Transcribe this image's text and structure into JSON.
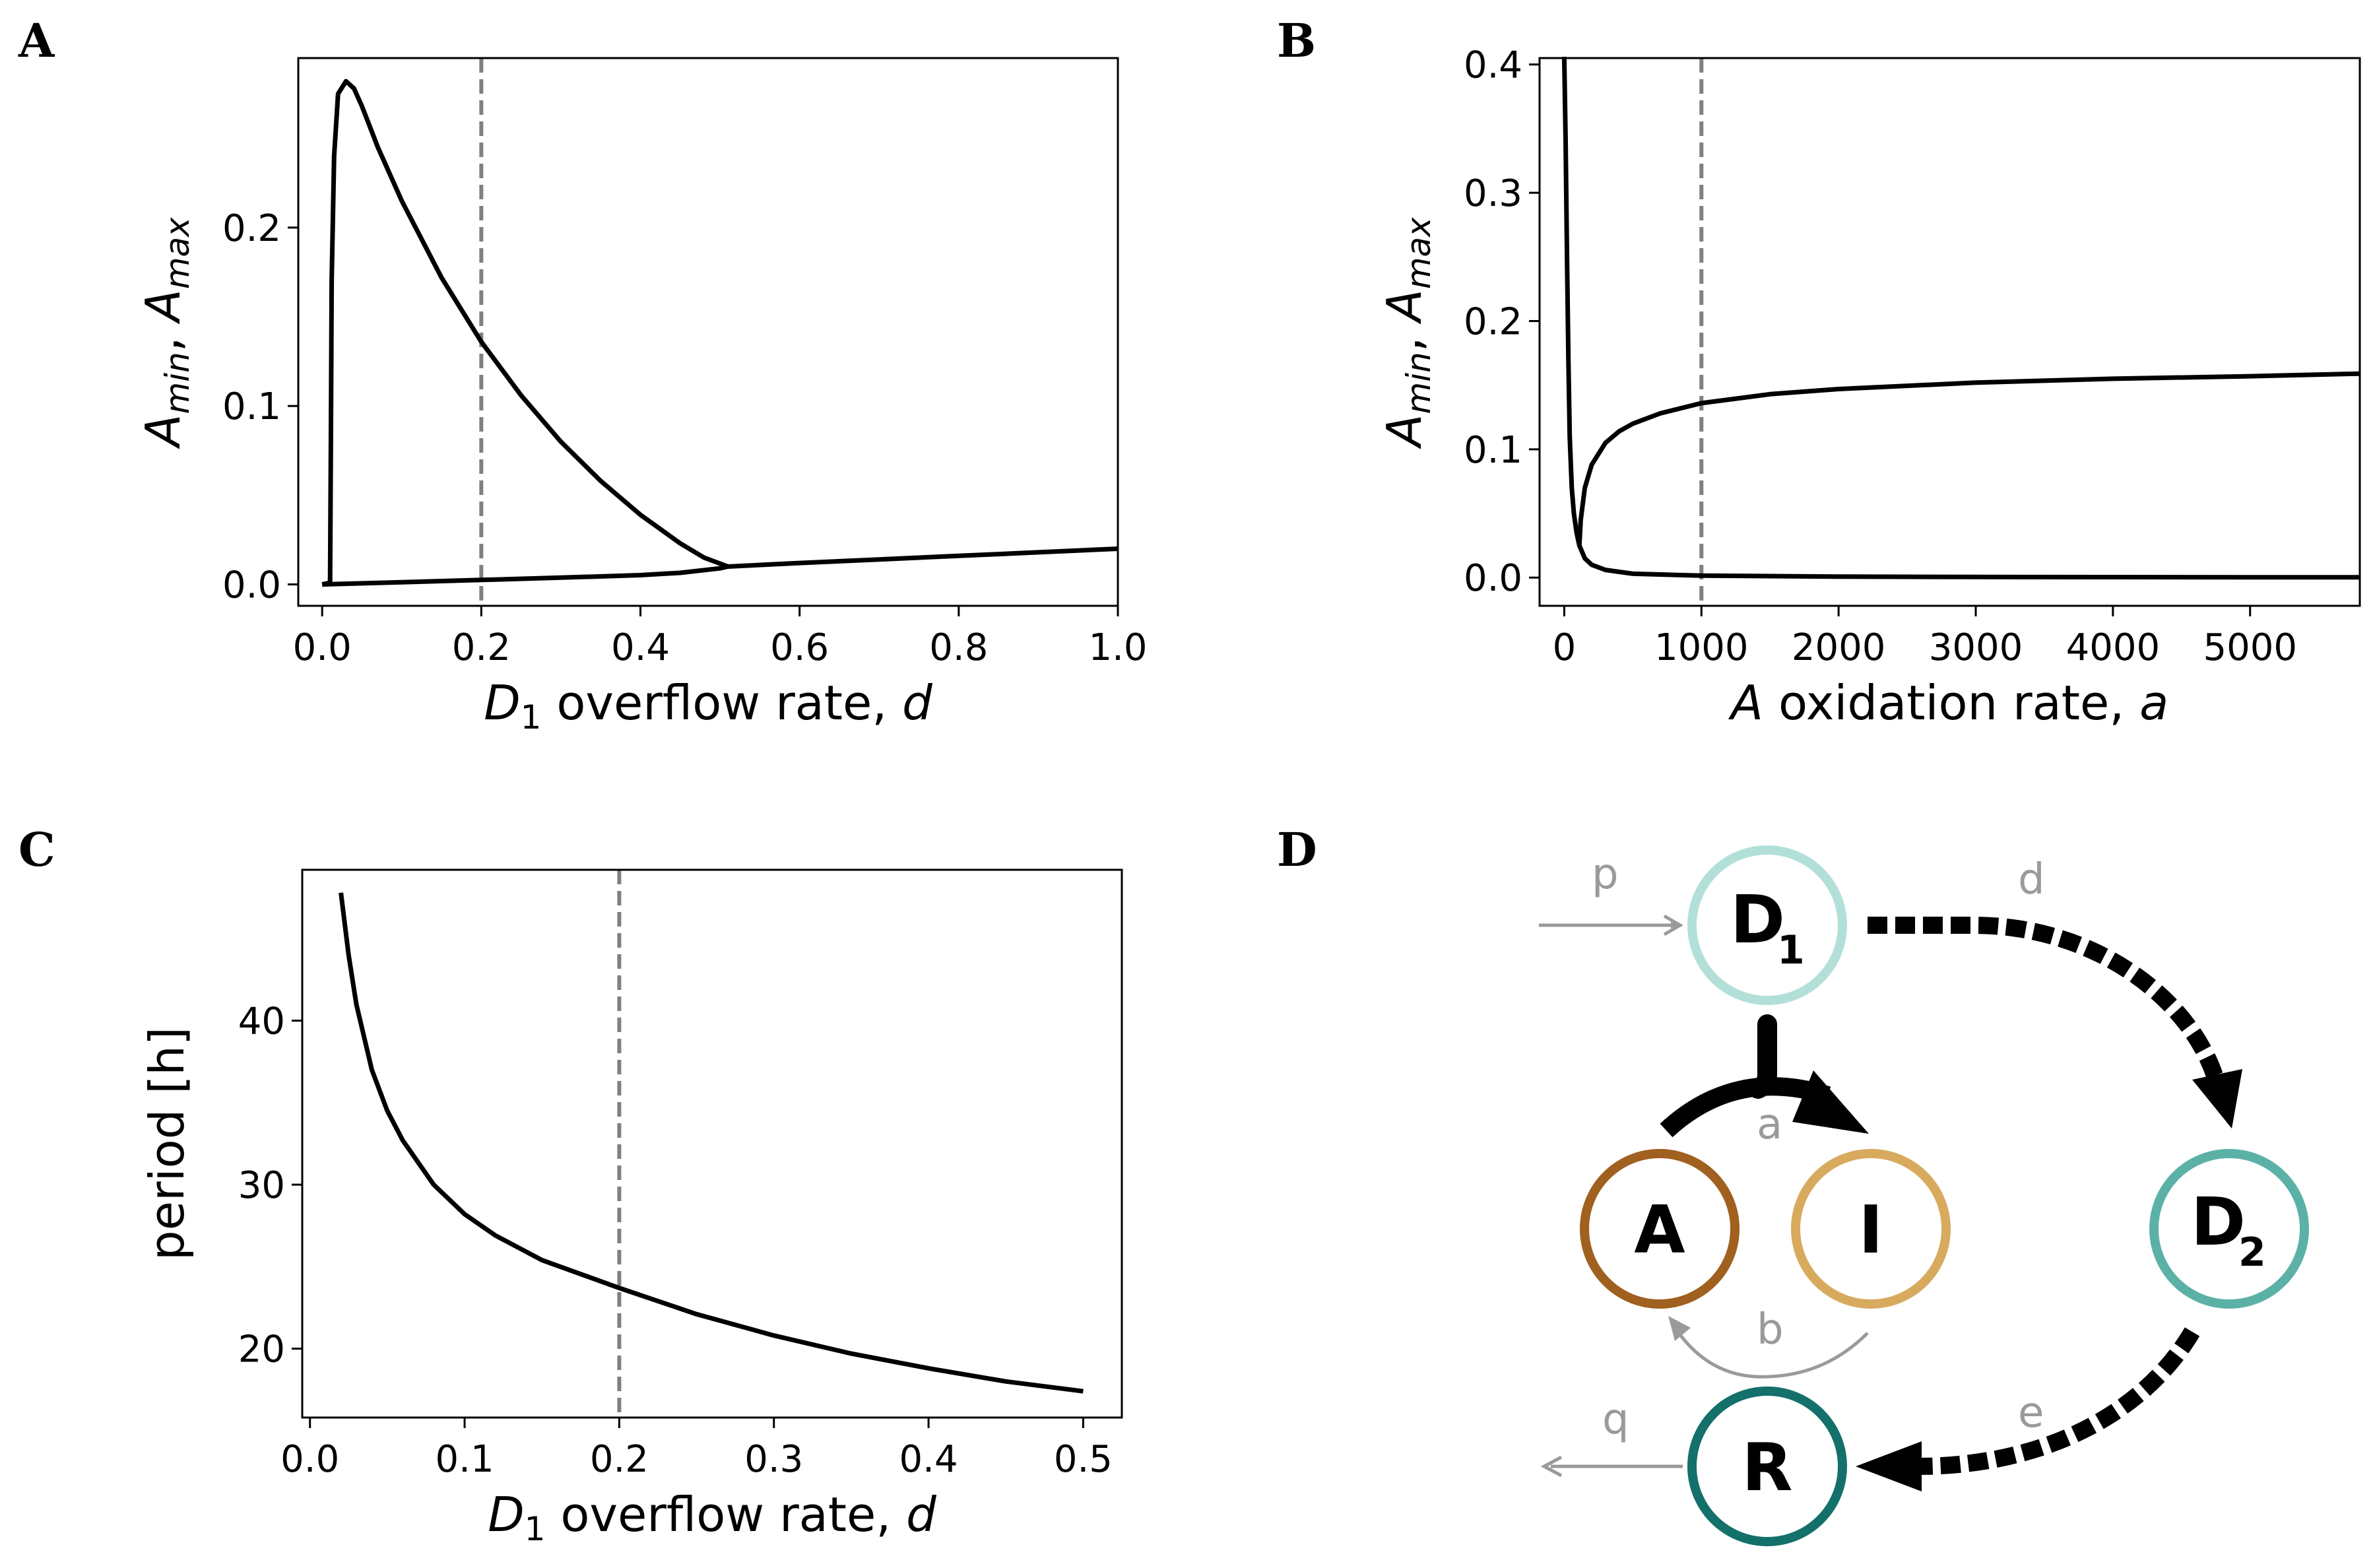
{
  "panels": {
    "A": "A",
    "B": "B",
    "C": "C",
    "D": "D"
  },
  "chart_data": [
    {
      "id": "A",
      "type": "line",
      "xlabel_main": "D",
      "xlabel_sub": "1",
      "xlabel_rest": " overflow rate, ",
      "xlabel_var": "d",
      "ylabel_a": "A",
      "ylabel_a_sub": "min",
      "ylabel_sep": ", ",
      "ylabel_b": "A",
      "ylabel_b_sub": "max",
      "xlim": [
        -0.03,
        1.0
      ],
      "ylim": [
        -0.012,
        0.295
      ],
      "xticks": [
        "0.0",
        "0.2",
        "0.4",
        "0.6",
        "0.8",
        "1.0"
      ],
      "xtick_values": [
        0.0,
        0.2,
        0.4,
        0.6,
        0.8,
        1.0
      ],
      "yticks": [
        "0.0",
        "0.1",
        "0.2"
      ],
      "ytick_values": [
        0.0,
        0.1,
        0.2
      ],
      "vline": 0.2,
      "series": [
        {
          "x": [
            0.0,
            0.01,
            0.011,
            0.012,
            0.015,
            0.02,
            0.03,
            0.04,
            0.05,
            0.07,
            0.1,
            0.15,
            0.2,
            0.25,
            0.3,
            0.35,
            0.4,
            0.45,
            0.48,
            0.51
          ],
          "y": [
            0.0,
            0.001,
            0.08,
            0.17,
            0.24,
            0.275,
            0.282,
            0.278,
            0.268,
            0.245,
            0.215,
            0.172,
            0.136,
            0.106,
            0.08,
            0.058,
            0.039,
            0.023,
            0.015,
            0.01
          ]
        },
        {
          "x": [
            0.0,
            0.1,
            0.2,
            0.3,
            0.4,
            0.45,
            0.5,
            0.51,
            0.6,
            0.7,
            0.8,
            0.9,
            1.0
          ],
          "y": [
            0.0,
            0.0012,
            0.0025,
            0.0038,
            0.0052,
            0.0065,
            0.009,
            0.01,
            0.012,
            0.014,
            0.016,
            0.018,
            0.02
          ]
        }
      ]
    },
    {
      "id": "B",
      "type": "line",
      "xlabel_main": "A",
      "xlabel_rest": " oxidation rate, ",
      "xlabel_var": "a",
      "ylabel_a": "A",
      "ylabel_a_sub": "min",
      "ylabel_sep": ", ",
      "ylabel_b": "A",
      "ylabel_b_sub": "max",
      "xlim": [
        -180,
        5800
      ],
      "ylim": [
        -0.022,
        0.405
      ],
      "xticks": [
        "0",
        "1000",
        "2000",
        "3000",
        "4000",
        "5000"
      ],
      "xtick_values": [
        0,
        1000,
        2000,
        3000,
        4000,
        5000
      ],
      "yticks": [
        "0.0",
        "0.1",
        "0.2",
        "0.3",
        "0.4"
      ],
      "ytick_values": [
        0.0,
        0.1,
        0.2,
        0.3,
        0.4
      ],
      "vline": 1000,
      "series": [
        {
          "x": [
            0,
            10,
            20,
            30,
            40,
            55,
            70,
            90,
            110,
            150,
            200,
            300,
            500,
            1000,
            2000,
            3000,
            4000,
            5000,
            5800
          ],
          "y": [
            0.42,
            0.34,
            0.25,
            0.17,
            0.11,
            0.07,
            0.05,
            0.035,
            0.025,
            0.015,
            0.01,
            0.006,
            0.003,
            0.0015,
            0.0008,
            0.0005,
            0.0004,
            0.0003,
            0.0003
          ]
        },
        {
          "x": [
            110,
            120,
            150,
            200,
            300,
            400,
            500,
            700,
            1000,
            1500,
            2000,
            3000,
            4000,
            5000,
            5800
          ],
          "y": [
            0.025,
            0.045,
            0.07,
            0.088,
            0.105,
            0.114,
            0.12,
            0.128,
            0.136,
            0.143,
            0.147,
            0.152,
            0.155,
            0.157,
            0.159
          ]
        }
      ]
    },
    {
      "id": "C",
      "type": "line",
      "xlabel_main": "D",
      "xlabel_sub": "1",
      "xlabel_rest": " overflow rate, ",
      "xlabel_var": "d",
      "ylabel": "period [h]",
      "xlim": [
        -0.005,
        0.525
      ],
      "ylim": [
        15.8,
        49.2
      ],
      "xticks": [
        "0.0",
        "0.1",
        "0.2",
        "0.3",
        "0.4",
        "0.5"
      ],
      "xtick_values": [
        0.0,
        0.1,
        0.2,
        0.3,
        0.4,
        0.5
      ],
      "yticks": [
        "20",
        "30",
        "40"
      ],
      "ytick_values": [
        20,
        30,
        40
      ],
      "vline": 0.2,
      "series": [
        {
          "x": [
            0.02,
            0.025,
            0.03,
            0.04,
            0.05,
            0.06,
            0.08,
            0.1,
            0.12,
            0.15,
            0.2,
            0.25,
            0.3,
            0.35,
            0.4,
            0.45,
            0.5
          ],
          "y": [
            47.8,
            44.0,
            41.0,
            37.0,
            34.5,
            32.7,
            30.0,
            28.2,
            26.9,
            25.4,
            23.7,
            22.1,
            20.8,
            19.7,
            18.8,
            18.0,
            17.4
          ]
        }
      ]
    }
  ],
  "diagram": {
    "nodes": {
      "D1": {
        "main": "D",
        "sub": "1",
        "color": "#b2e0d8"
      },
      "D2": {
        "main": "D",
        "sub": "2",
        "color": "#5cb1a7"
      },
      "A": {
        "main": "A",
        "color": "#a0601f"
      },
      "I": {
        "main": "I",
        "color": "#d7aa5e"
      },
      "R": {
        "main": "R",
        "color": "#14706a"
      }
    },
    "edge_labels": {
      "p": "p",
      "d": "d",
      "a": "a",
      "b": "b",
      "e": "e",
      "q": "q"
    },
    "colors": {
      "gray": "#9a9a9a",
      "black": "#000000"
    }
  }
}
